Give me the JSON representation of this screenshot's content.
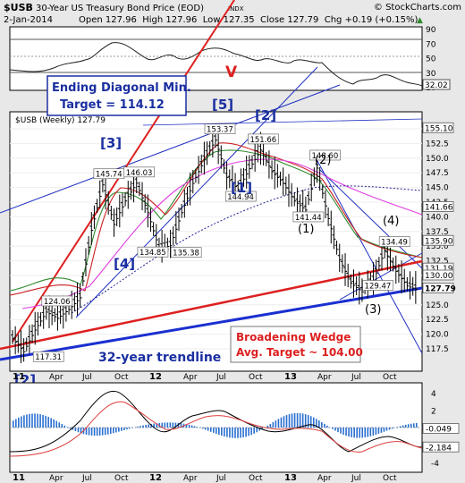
{
  "header": {
    "symbol": "$USB",
    "description": "30-Year US Treasury Bond Price (EOD)",
    "exchange": "INDX",
    "copyright": "© StockCharts.com",
    "date": "2-Jan-2014",
    "quote": "Open 127.96  High 127.96  Low 127.35  Close 127.79  Chg +0.19 (+0.15%)",
    "quote_arrow": "▲"
  },
  "colors": {
    "price": "#000000",
    "ma_green": "#2e8b2e",
    "ma_red": "#cc2222",
    "ma_magenta": "#e040e0",
    "ma_navy": "#202090",
    "channel": "#2030c0",
    "trend_red": "#dd2020",
    "trend_blue": "#1a2fd0",
    "label_blue": "#1a2fa0",
    "rsi_line": "#222222",
    "macd_red": "#dd4040",
    "macd_black": "#000000",
    "hist": "#2a6fd0",
    "background": "#ffffff",
    "panel_outline": "#000000"
  },
  "rsi_panel": {
    "ticks": [
      "90",
      "70",
      "50",
      "30",
      "10"
    ],
    "last_value": "32.02"
  },
  "price_panel": {
    "legend": "$USB (Weekly) 127.79",
    "ticks": [
      "155.0",
      "152.5",
      "150.0",
      "147.5",
      "145.0",
      "142.5",
      "140.0",
      "137.5",
      "135.0",
      "132.5",
      "130.0",
      "127.5",
      "125.0",
      "122.5",
      "120.0",
      "117.5"
    ],
    "price_tags": [
      "155.10",
      "141.66",
      "135.90",
      "131.19",
      "130.00",
      "127.79"
    ]
  },
  "macd_panel": {
    "ticks": [
      "4",
      "2",
      "0",
      "-2",
      "-4"
    ],
    "tags": [
      "-0.049",
      "-2.184"
    ]
  },
  "x_axis": {
    "years": [
      "11",
      "12",
      "13"
    ],
    "months": [
      "Apr",
      "Jul",
      "Oct",
      "Apr",
      "Jul",
      "Oct",
      "Apr",
      "Jul",
      "Oct"
    ]
  },
  "annotations": {
    "ending_diagonal": "Ending Diagonal Min.",
    "ending_target": "Target = 114.12",
    "broadening_wedge": "Broadening Wedge",
    "wedge_target": "Avg. Target ~ 104.00",
    "trendline": "32-year trendline",
    "v_mark": "V",
    "wave5": "[5]",
    "wave3": "[3]",
    "wave4": "[4]",
    "wave1_big": "[1]",
    "wave2_big": "[2]",
    "wave2_left": "[2]",
    "wave_2": "(2)",
    "wave_1": "(1)",
    "wave_3": "(3)",
    "wave_4": "(4)"
  },
  "chart_data": {
    "type": "ohlc",
    "title": "$USB 30-Year US Treasury Bond Price (EOD)",
    "interval": "Weekly",
    "x_range": [
      "2011-01",
      "2014-01"
    ],
    "ylim": [
      116,
      157
    ],
    "series": [
      {
        "name": "$USB (Weekly)",
        "points": [
          [
            "2011-01",
            119.5
          ],
          [
            "2011-02",
            117.31
          ],
          [
            "2011-03",
            121.0
          ],
          [
            "2011-04",
            124.06
          ],
          [
            "2011-05",
            123.0
          ],
          [
            "2011-06",
            124.5
          ],
          [
            "2011-07",
            126.5
          ],
          [
            "2011-08",
            138.0
          ],
          [
            "2011-09",
            145.74
          ],
          [
            "2011-10",
            139.0
          ],
          [
            "2011-11",
            143.0
          ],
          [
            "2011-12",
            146.03
          ],
          [
            "2012-01",
            141.0
          ],
          [
            "2012-02",
            134.85
          ],
          [
            "2012-03",
            135.38
          ],
          [
            "2012-04",
            141.0
          ],
          [
            "2012-05",
            146.0
          ],
          [
            "2012-06",
            150.0
          ],
          [
            "2012-07",
            153.37
          ],
          [
            "2012-08",
            147.0
          ],
          [
            "2012-09",
            144.94
          ],
          [
            "2012-10",
            148.5
          ],
          [
            "2012-11",
            151.66
          ],
          [
            "2012-12",
            148.0
          ],
          [
            "2013-01",
            146.0
          ],
          [
            "2013-02",
            143.0
          ],
          [
            "2013-03",
            141.44
          ],
          [
            "2013-04",
            148.6
          ],
          [
            "2013-05",
            140.0
          ],
          [
            "2013-06",
            133.0
          ],
          [
            "2013-07",
            129.0
          ],
          [
            "2013-08",
            127.5
          ],
          [
            "2013-09",
            129.47
          ],
          [
            "2013-10",
            134.49
          ],
          [
            "2013-11",
            131.0
          ],
          [
            "2013-12",
            128.5
          ],
          [
            "2014-01",
            127.79
          ]
        ]
      }
    ],
    "labeled_values": [
      {
        "label": "117.31",
        "value": 117.31
      },
      {
        "label": "124.06",
        "value": 124.06
      },
      {
        "label": "145.74",
        "value": 145.74
      },
      {
        "label": "146.03",
        "value": 146.03
      },
      {
        "label": "134.85",
        "value": 134.85
      },
      {
        "label": "135.38",
        "value": 135.38
      },
      {
        "label": "153.37",
        "value": 153.37
      },
      {
        "label": "144.94",
        "value": 144.94
      },
      {
        "label": "151.66",
        "value": 151.66
      },
      {
        "label": "141.44",
        "value": 141.44
      },
      {
        "label": "148.60",
        "value": 148.6
      },
      {
        "label": "129.47",
        "value": 129.47
      },
      {
        "label": "134.49",
        "value": 134.49
      }
    ],
    "rsi": {
      "ylim": [
        0,
        100
      ],
      "last": 32.02
    },
    "macd": {
      "ylim": [
        -5,
        5
      ],
      "lines": [
        -0.049,
        -2.184
      ]
    }
  }
}
